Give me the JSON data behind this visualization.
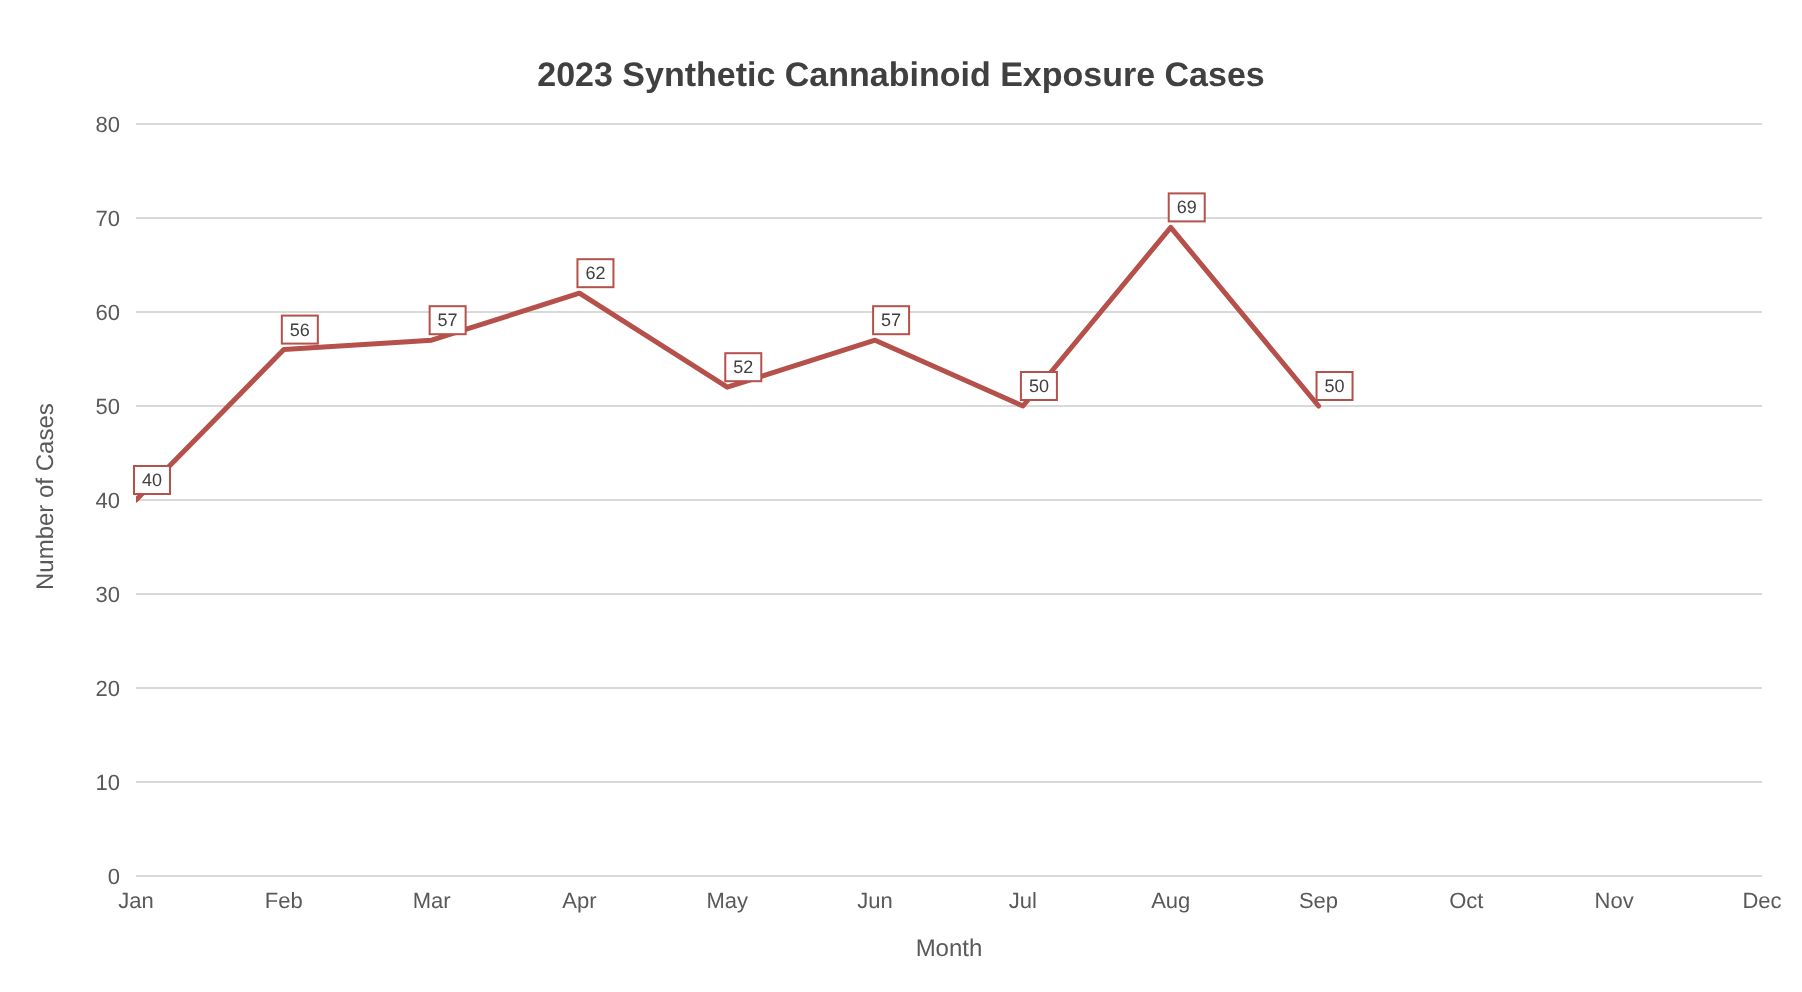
{
  "chart_data": {
    "type": "line",
    "title": "2023 Synthetic Cannabinoid Exposure Cases",
    "xlabel": "Month",
    "ylabel": "Number of Cases",
    "categories": [
      "Jan",
      "Feb",
      "Mar",
      "Apr",
      "May",
      "Jun",
      "Jul",
      "Aug",
      "Sep",
      "Oct",
      "Nov",
      "Dec"
    ],
    "series": [
      {
        "color": "#b5504a",
        "values": [
          40,
          56,
          57,
          62,
          52,
          57,
          50,
          69,
          50,
          null,
          null,
          null
        ]
      }
    ],
    "ylim": [
      0,
      80
    ],
    "yticks": [
      0,
      10,
      20,
      30,
      40,
      50,
      60,
      70,
      80
    ],
    "grid": "y",
    "data_labels": true,
    "marker": "none",
    "line_style": "solid"
  }
}
